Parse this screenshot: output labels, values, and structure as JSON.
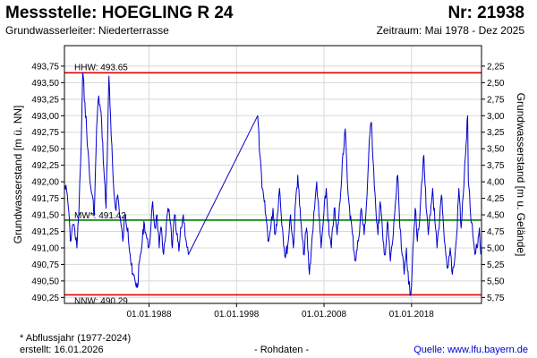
{
  "header": {
    "title": "Messstelle: HOEGLING R 24",
    "number": "Nr: 21938",
    "aquifer": "Grundwasserleiter:   Niederterrasse",
    "period": "Zeitraum: Mai 1978 - Dez 2025"
  },
  "footer": {
    "note": "* Abflussjahr (1977-2024)",
    "created": "erstellt:  16.01.2026",
    "raw": "- Rohdaten -",
    "source": "Quelle: www.lfu.bayern.de"
  },
  "colors": {
    "series": "#0000cc",
    "extreme_lines": "#e00000",
    "mean_line": "#008000",
    "grid": "#d8d8d8"
  },
  "chart_data": {
    "type": "line",
    "ylabel": "Grundwasserstand [m ü. NN]",
    "y2label": "Grundwasserstand [m u. Gelände]",
    "ylim": [
      490.16,
      494.06
    ],
    "xlim": [
      "1978-05-01",
      "2025-12-31"
    ],
    "yticks": [
      "490,25",
      "490,50",
      "490,75",
      "491,00",
      "491,25",
      "491,50",
      "491,75",
      "492,00",
      "492,25",
      "492,50",
      "492,75",
      "493,00",
      "493,25",
      "493,50",
      "493,75"
    ],
    "y2ticks": [
      "2,25",
      "2,50",
      "2,75",
      "3,00",
      "3,25",
      "3,50",
      "3,75",
      "4,00",
      "4,25",
      "4,50",
      "4,75",
      "5,00",
      "5,25",
      "5,50",
      "5,75"
    ],
    "xticks": [
      {
        "date": "1988-01-01",
        "label": "01.01.1988"
      },
      {
        "date": "1998-01-01",
        "label": "01.01.1998"
      },
      {
        "date": "2008-01-01",
        "label": "01.01.2008"
      },
      {
        "date": "2018-01-01",
        "label": "01.01.2018"
      }
    ],
    "grid": true,
    "reference_lines": [
      {
        "label": "HHW: 493.65",
        "value": 493.65,
        "kind": "extreme"
      },
      {
        "label": "MW*: 491.42",
        "value": 491.42,
        "kind": "mean"
      },
      {
        "label": "NNW: 490.29",
        "value": 490.29,
        "kind": "extreme"
      }
    ],
    "series": [
      {
        "name": "",
        "points": [
          [
            "1978-05-01",
            491.95
          ],
          [
            "1978-08-01",
            491.85
          ],
          [
            "1978-11-01",
            491.55
          ],
          [
            "1979-01-01",
            491.1
          ],
          [
            "1979-04-01",
            491.35
          ],
          [
            "1979-07-01",
            491.3
          ],
          [
            "1979-10-01",
            491.0
          ],
          [
            "1980-01-01",
            491.6
          ],
          [
            "1980-04-01",
            492.6
          ],
          [
            "1980-06-01",
            493.65
          ],
          [
            "1980-09-01",
            493.2
          ],
          [
            "1981-01-01",
            492.5
          ],
          [
            "1981-04-01",
            492.0
          ],
          [
            "1981-07-01",
            491.8
          ],
          [
            "1981-10-01",
            491.5
          ],
          [
            "1982-01-01",
            492.8
          ],
          [
            "1982-04-01",
            493.3
          ],
          [
            "1982-08-01",
            492.9
          ],
          [
            "1982-11-01",
            492.2
          ],
          [
            "1983-02-01",
            491.6
          ],
          [
            "1983-06-01",
            493.6
          ],
          [
            "1983-09-01",
            492.7
          ],
          [
            "1983-12-01",
            492.0
          ],
          [
            "1984-03-01",
            491.6
          ],
          [
            "1984-06-01",
            491.8
          ],
          [
            "1984-10-01",
            491.4
          ],
          [
            "1985-01-01",
            491.1
          ],
          [
            "1985-04-01",
            491.5
          ],
          [
            "1985-08-01",
            491.3
          ],
          [
            "1985-11-01",
            490.9
          ],
          [
            "1986-02-01",
            490.6
          ],
          [
            "1986-06-01",
            490.5
          ],
          [
            "1986-09-01",
            490.4
          ],
          [
            "1986-12-01",
            490.8
          ],
          [
            "1987-03-01",
            491.0
          ],
          [
            "1987-06-01",
            491.4
          ],
          [
            "1987-09-01",
            491.2
          ],
          [
            "1987-12-01",
            491.0
          ],
          [
            "1988-03-01",
            491.2
          ],
          [
            "1988-06-01",
            491.7
          ],
          [
            "1988-09-01",
            491.3
          ],
          [
            "1988-12-01",
            491.5
          ],
          [
            "1989-03-01",
            491.0
          ],
          [
            "1989-06-01",
            491.3
          ],
          [
            "1989-09-01",
            490.9
          ],
          [
            "1989-12-01",
            491.2
          ],
          [
            "1990-03-01",
            491.6
          ],
          [
            "1990-06-01",
            491.4
          ],
          [
            "1990-09-01",
            491.0
          ],
          [
            "1990-12-01",
            491.5
          ],
          [
            "1991-03-01",
            491.2
          ],
          [
            "1991-06-01",
            490.95
          ],
          [
            "1991-09-01",
            491.3
          ],
          [
            "1991-12-01",
            491.5
          ],
          [
            "1992-04-01",
            491.1
          ],
          [
            "1992-07-01",
            490.9
          ],
          [
            "2000-06-01",
            493.0
          ],
          [
            "2000-09-01",
            492.4
          ],
          [
            "2000-12-01",
            491.9
          ],
          [
            "2001-03-01",
            491.7
          ],
          [
            "2001-06-01",
            491.4
          ],
          [
            "2001-09-01",
            491.1
          ],
          [
            "2001-12-01",
            491.3
          ],
          [
            "2002-03-01",
            491.6
          ],
          [
            "2002-06-01",
            491.2
          ],
          [
            "2002-09-01",
            491.5
          ],
          [
            "2002-12-01",
            491.9
          ],
          [
            "2003-04-01",
            491.3
          ],
          [
            "2003-08-01",
            490.85
          ],
          [
            "2003-12-01",
            491.1
          ],
          [
            "2004-03-01",
            491.5
          ],
          [
            "2004-07-01",
            491.0
          ],
          [
            "2004-10-01",
            491.7
          ],
          [
            "2005-01-01",
            492.1
          ],
          [
            "2005-05-01",
            491.4
          ],
          [
            "2005-09-01",
            490.9
          ],
          [
            "2006-01-01",
            491.3
          ],
          [
            "2006-05-01",
            490.6
          ],
          [
            "2006-09-01",
            491.2
          ],
          [
            "2006-12-01",
            491.6
          ],
          [
            "2007-03-01",
            492.0
          ],
          [
            "2007-06-01",
            491.5
          ],
          [
            "2007-09-01",
            491.0
          ],
          [
            "2007-12-01",
            491.4
          ],
          [
            "2008-04-01",
            491.9
          ],
          [
            "2008-08-01",
            491.2
          ],
          [
            "2008-11-01",
            491.0
          ],
          [
            "2009-03-01",
            491.6
          ],
          [
            "2009-07-01",
            491.2
          ],
          [
            "2009-11-01",
            491.7
          ],
          [
            "2010-02-01",
            492.3
          ],
          [
            "2010-06-01",
            492.8
          ],
          [
            "2010-09-01",
            492.0
          ],
          [
            "2010-12-01",
            491.6
          ],
          [
            "2011-04-01",
            491.2
          ],
          [
            "2011-08-01",
            490.8
          ],
          [
            "2011-12-01",
            491.1
          ],
          [
            "2012-04-01",
            491.6
          ],
          [
            "2012-08-01",
            491.2
          ],
          [
            "2012-12-01",
            491.8
          ],
          [
            "2013-03-01",
            492.6
          ],
          [
            "2013-06-01",
            492.9
          ],
          [
            "2013-09-01",
            492.2
          ],
          [
            "2013-12-01",
            491.6
          ],
          [
            "2014-03-01",
            491.2
          ],
          [
            "2014-06-01",
            491.7
          ],
          [
            "2014-10-01",
            491.1
          ],
          [
            "2015-01-01",
            490.9
          ],
          [
            "2015-04-01",
            491.4
          ],
          [
            "2015-08-01",
            490.8
          ],
          [
            "2015-12-01",
            491.2
          ],
          [
            "2016-03-01",
            491.7
          ],
          [
            "2016-06-01",
            492.1
          ],
          [
            "2016-09-01",
            491.3
          ],
          [
            "2016-12-01",
            490.9
          ],
          [
            "2017-03-01",
            490.6
          ],
          [
            "2017-06-01",
            491.0
          ],
          [
            "2017-09-01",
            490.45
          ],
          [
            "2017-12-01",
            490.29
          ],
          [
            "2018-03-01",
            491.0
          ],
          [
            "2018-06-01",
            491.6
          ],
          [
            "2018-09-01",
            491.1
          ],
          [
            "2018-12-01",
            491.4
          ],
          [
            "2019-03-01",
            492.0
          ],
          [
            "2019-06-01",
            492.4
          ],
          [
            "2019-09-01",
            491.6
          ],
          [
            "2019-12-01",
            491.2
          ],
          [
            "2020-03-01",
            491.5
          ],
          [
            "2020-06-01",
            491.9
          ],
          [
            "2020-09-01",
            491.4
          ],
          [
            "2020-12-01",
            491.0
          ],
          [
            "2021-03-01",
            491.3
          ],
          [
            "2021-06-01",
            491.8
          ],
          [
            "2021-09-01",
            491.3
          ],
          [
            "2021-12-01",
            490.9
          ],
          [
            "2022-03-01",
            490.7
          ],
          [
            "2022-06-01",
            491.0
          ],
          [
            "2022-09-01",
            490.6
          ],
          [
            "2022-12-01",
            490.8
          ],
          [
            "2023-03-01",
            491.2
          ],
          [
            "2023-06-01",
            491.9
          ],
          [
            "2023-09-01",
            491.3
          ],
          [
            "2023-12-01",
            491.8
          ],
          [
            "2024-03-01",
            492.4
          ],
          [
            "2024-06-01",
            493.0
          ],
          [
            "2024-07-01",
            492.0
          ],
          [
            "2024-10-01",
            491.5
          ],
          [
            "2025-01-01",
            491.2
          ],
          [
            "2025-04-01",
            490.9
          ],
          [
            "2025-07-01",
            491.0
          ],
          [
            "2025-10-01",
            491.3
          ],
          [
            "2025-12-01",
            490.9
          ]
        ]
      }
    ]
  }
}
